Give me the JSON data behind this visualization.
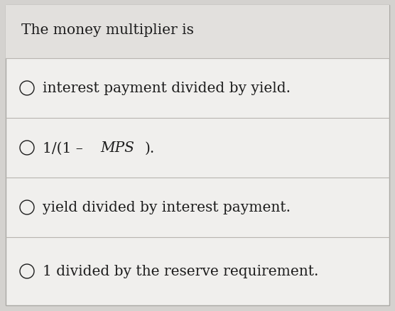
{
  "title": "The money multiplier is",
  "options": [
    "interest payment divided by yield.",
    "1/(1 – MPS).",
    "yield divided by interest payment.",
    "1 divided by the reserve requirement."
  ],
  "bg_color": "#d4d2cf",
  "card_color": "#f0efed",
  "title_fontsize": 14.5,
  "option_fontsize": 14.5,
  "text_color": "#1c1c1c",
  "divider_color": "#b8b5b0",
  "title_bg": "#e2e0dd"
}
